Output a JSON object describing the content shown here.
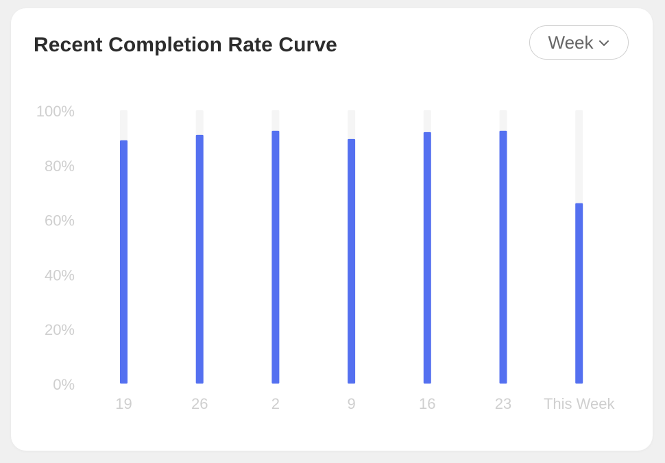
{
  "card": {
    "title": "Recent Completion Rate Curve"
  },
  "period_select": {
    "value": "Week",
    "icon": "chevron-down-icon"
  },
  "colors": {
    "bar": "#5470f0",
    "track": "#f5f5f5",
    "axis_text": "#cfcfcf"
  },
  "chart_data": {
    "type": "bar",
    "title": "Recent Completion Rate Curve",
    "categories": [
      "19",
      "26",
      "2",
      "9",
      "16",
      "23",
      "This Week"
    ],
    "values": [
      89,
      91,
      92.5,
      89.5,
      92,
      92.5,
      66
    ],
    "ylim": [
      0,
      100
    ],
    "y_ticks": [
      "0%",
      "20%",
      "40%",
      "60%",
      "80%",
      "100%"
    ],
    "y_tick_values": [
      0,
      20,
      40,
      60,
      80,
      100
    ],
    "xlabel": "",
    "ylabel": "",
    "grid": false,
    "legend": "none"
  }
}
